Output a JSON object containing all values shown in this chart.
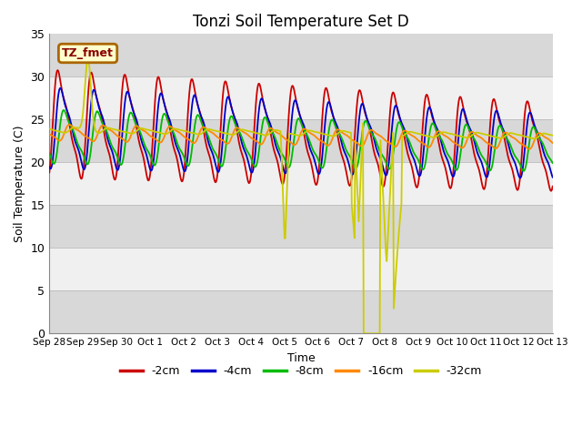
{
  "title": "Tonzi Soil Temperature Set D",
  "xlabel": "Time",
  "ylabel": "Soil Temperature (C)",
  "ylim": [
    0,
    35
  ],
  "annotation_label": "TZ_fmet",
  "legend_entries": [
    "-2cm",
    "-4cm",
    "-8cm",
    "-16cm",
    "-32cm"
  ],
  "line_colors": [
    "#cc0000",
    "#0000cc",
    "#00bb00",
    "#ff8800",
    "#cccc00"
  ],
  "x_tick_labels": [
    "Sep 28",
    "Sep 29",
    "Sep 30",
    "Oct 1",
    "Oct 2",
    "Oct 3",
    "Oct 4",
    "Oct 5",
    "Oct 6",
    "Oct 7",
    "Oct 8",
    "Oct 9",
    "Oct 10",
    "Oct 11",
    "Oct 12",
    "Oct 13"
  ],
  "bg_color_light": "#d8d8d8",
  "bg_color_white": "#f0f0f0"
}
